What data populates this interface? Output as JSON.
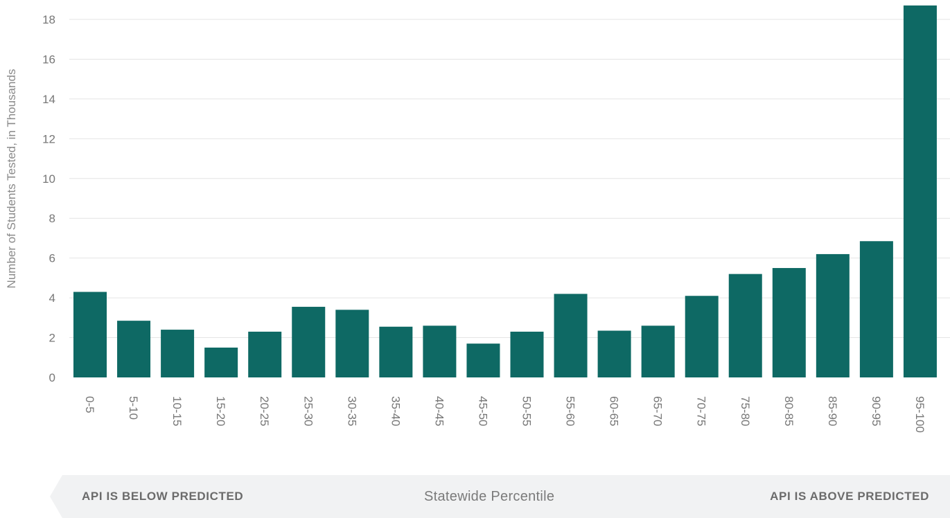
{
  "chart_data": {
    "type": "bar",
    "ylabel": "Number of Students Tested, in Thousands",
    "xlabel": "Statewide Percentile",
    "ylim": [
      0,
      18
    ],
    "yticks": [
      0,
      2,
      4,
      6,
      8,
      10,
      12,
      14,
      16,
      18
    ],
    "grid": true,
    "categories": [
      "0-5",
      "5-10",
      "10-15",
      "15-20",
      "20-25",
      "25-30",
      "30-35",
      "35-40",
      "40-45",
      "45-50",
      "50-55",
      "55-60",
      "60-65",
      "65-70",
      "70-75",
      "75-80",
      "80-85",
      "85-90",
      "90-95",
      "95-100"
    ],
    "values": [
      4.3,
      2.85,
      2.4,
      1.5,
      2.3,
      3.55,
      3.4,
      2.55,
      2.6,
      1.7,
      2.3,
      4.2,
      2.35,
      2.6,
      4.1,
      5.2,
      5.5,
      6.2,
      6.85,
      18.7
    ],
    "bar_color": "#0e6964"
  },
  "footer": {
    "left_label": "API IS BELOW PREDICTED",
    "center_label": "Statewide Percentile",
    "right_label": "API IS ABOVE PREDICTED",
    "band_color": "#f1f2f3"
  }
}
